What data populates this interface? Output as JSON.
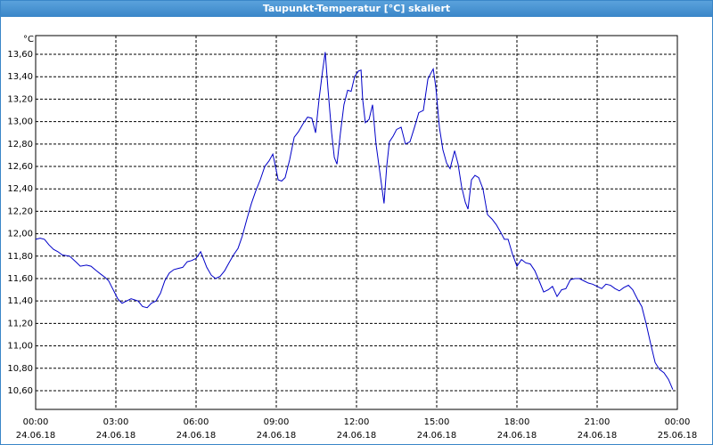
{
  "chart_data": {
    "type": "line",
    "title": "Taupunkt-Temperatur [°C] skaliert",
    "y_unit": "°C",
    "xlim": [
      0,
      24
    ],
    "xticks": [
      {
        "value": 0,
        "label": "00:00"
      },
      {
        "value": 3,
        "label": "03:00"
      },
      {
        "value": 6,
        "label": "06:00"
      },
      {
        "value": 9,
        "label": "09:00"
      },
      {
        "value": 12,
        "label": "12:00"
      },
      {
        "value": 15,
        "label": "15:00"
      },
      {
        "value": 18,
        "label": "18:00"
      },
      {
        "value": 21,
        "label": "21:00"
      },
      {
        "value": 24,
        "label": "00:00"
      }
    ],
    "xtick_dates": [
      "24.06.18",
      "24.06.18",
      "24.06.18",
      "24.06.18",
      "24.06.18",
      "24.06.18",
      "24.06.18",
      "24.06.18",
      "25.06.18"
    ],
    "ylim": [
      10.433,
      13.767
    ],
    "yticks": [
      {
        "value": 10.6,
        "label": "10,60"
      },
      {
        "value": 10.8,
        "label": "10,80"
      },
      {
        "value": 11.0,
        "label": "11,00"
      },
      {
        "value": 11.2,
        "label": "11,20"
      },
      {
        "value": 11.4,
        "label": "11,40"
      },
      {
        "value": 11.6,
        "label": "11,60"
      },
      {
        "value": 11.8,
        "label": "11,80"
      },
      {
        "value": 12.0,
        "label": "12,00"
      },
      {
        "value": 12.2,
        "label": "12,20"
      },
      {
        "value": 12.4,
        "label": "12,40"
      },
      {
        "value": 12.6,
        "label": "12,60"
      },
      {
        "value": 12.8,
        "label": "12,80"
      },
      {
        "value": 13.0,
        "label": "13,00"
      },
      {
        "value": 13.2,
        "label": "13,20"
      },
      {
        "value": 13.4,
        "label": "13,40"
      },
      {
        "value": 13.6,
        "label": "13,60"
      }
    ],
    "grid": true,
    "x": [
      0,
      0.17,
      0.33,
      0.5,
      0.67,
      0.83,
      1,
      1.27,
      1.5,
      1.67,
      1.9,
      2.07,
      2.27,
      2.43,
      2.6,
      2.73,
      2.9,
      3.07,
      3.23,
      3.4,
      3.57,
      3.83,
      4,
      4.17,
      4.33,
      4.5,
      4.67,
      4.83,
      5,
      5.17,
      5.33,
      5.5,
      5.67,
      5.83,
      6,
      6.17,
      6.27,
      6.4,
      6.57,
      6.73,
      6.9,
      7.07,
      7.23,
      7.4,
      7.57,
      7.73,
      7.9,
      8.07,
      8.23,
      8.4,
      8.57,
      8.73,
      8.87,
      8.97,
      9.07,
      9.2,
      9.33,
      9.5,
      9.67,
      9.83,
      10,
      10.17,
      10.33,
      10.47,
      10.6,
      10.73,
      10.83,
      10.93,
      11.07,
      11.17,
      11.27,
      11.4,
      11.53,
      11.67,
      11.8,
      11.93,
      12.07,
      12.17,
      12.23,
      12.33,
      12.47,
      12.6,
      12.73,
      12.9,
      13.03,
      13.13,
      13.23,
      13.37,
      13.5,
      13.67,
      13.83,
      14,
      14.17,
      14.33,
      14.5,
      14.67,
      14.8,
      14.87,
      14.97,
      15.1,
      15.23,
      15.37,
      15.5,
      15.67,
      15.8,
      15.93,
      16.07,
      16.17,
      16.3,
      16.43,
      16.57,
      16.73,
      16.9,
      17.07,
      17.23,
      17.4,
      17.53,
      17.67,
      17.83,
      18,
      18.17,
      18.33,
      18.5,
      18.67,
      18.83,
      19,
      19.17,
      19.33,
      19.5,
      19.67,
      19.83,
      20,
      20.17,
      20.33,
      20.5,
      20.67,
      20.83,
      21,
      21.17,
      21.33,
      21.5,
      21.67,
      21.83,
      22,
      22.17,
      22.33,
      22.5,
      22.67,
      22.83,
      23,
      23.17,
      23.33,
      23.5,
      23.67,
      23.83
    ],
    "series": [
      {
        "color": "#0000c8",
        "values": [
          11.95,
          11.96,
          11.95,
          11.9,
          11.86,
          11.84,
          11.81,
          11.8,
          11.75,
          11.71,
          11.72,
          11.71,
          11.67,
          11.64,
          11.61,
          11.58,
          11.5,
          11.42,
          11.38,
          11.4,
          11.42,
          11.4,
          11.35,
          11.34,
          11.38,
          11.4,
          11.47,
          11.58,
          11.65,
          11.68,
          11.69,
          11.7,
          11.75,
          11.76,
          11.78,
          11.84,
          11.78,
          11.7,
          11.63,
          11.6,
          11.62,
          11.67,
          11.74,
          11.81,
          11.87,
          11.98,
          12.13,
          12.27,
          12.38,
          12.48,
          12.6,
          12.65,
          12.71,
          12.6,
          12.48,
          12.47,
          12.5,
          12.66,
          12.86,
          12.91,
          12.98,
          13.04,
          13.03,
          12.9,
          13.2,
          13.45,
          13.62,
          13.3,
          12.9,
          12.68,
          12.62,
          12.9,
          13.15,
          13.28,
          13.27,
          13.4,
          13.45,
          13.46,
          13.2,
          12.99,
          13.02,
          13.15,
          12.8,
          12.5,
          12.27,
          12.6,
          12.82,
          12.87,
          12.93,
          12.95,
          12.8,
          12.82,
          12.95,
          13.08,
          13.1,
          13.38,
          13.44,
          13.47,
          13.3,
          12.95,
          12.75,
          12.63,
          12.58,
          12.74,
          12.62,
          12.42,
          12.28,
          12.22,
          12.48,
          12.52,
          12.5,
          12.4,
          12.17,
          12.13,
          12.08,
          12.01,
          11.95,
          11.95,
          11.82,
          11.71,
          11.77,
          11.74,
          11.73,
          11.67,
          11.58,
          11.48,
          11.5,
          11.53,
          11.44,
          11.5,
          11.51,
          11.59,
          11.6,
          11.6,
          11.58,
          11.56,
          11.55,
          11.53,
          11.51,
          11.55,
          11.54,
          11.51,
          11.49,
          11.52,
          11.54,
          11.5,
          11.42,
          11.35,
          11.2,
          11.02,
          10.85,
          10.79,
          10.76,
          10.7,
          10.61
        ]
      }
    ]
  }
}
